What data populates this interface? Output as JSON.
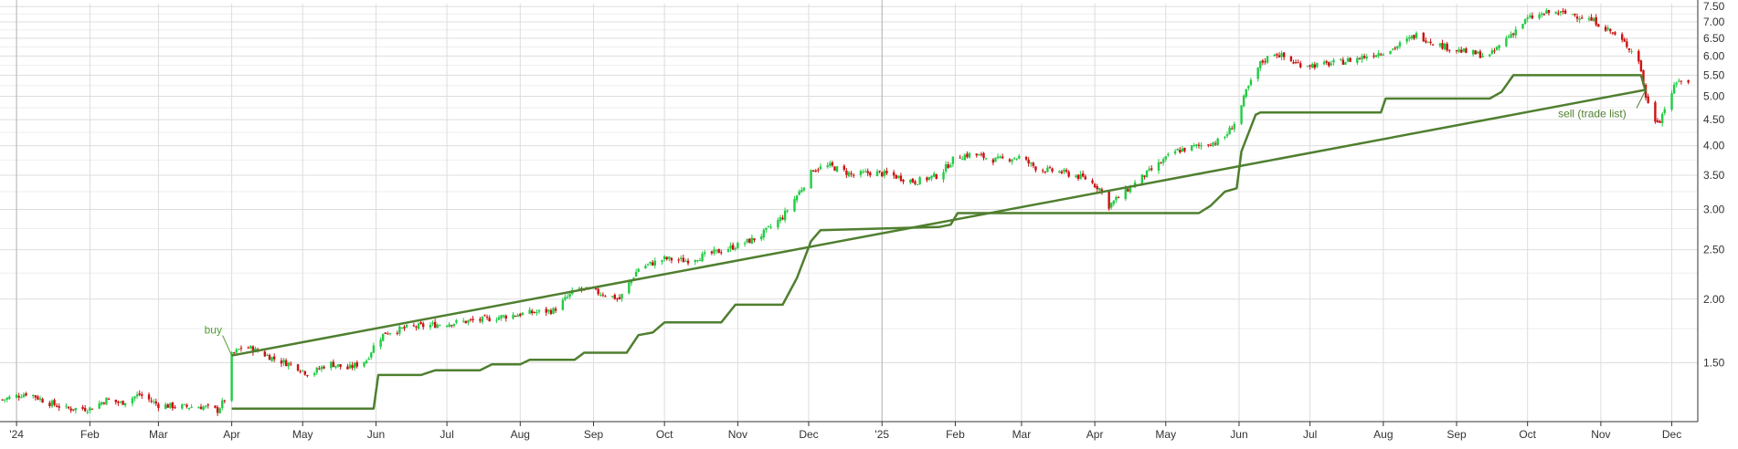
{
  "chart_data": {
    "type": "candlestick",
    "y_scale": "log",
    "ylim": [
      1.15,
      7.6
    ],
    "xlim": [
      "2023-12-25",
      "2025-12-12"
    ],
    "grid": true,
    "colors": {
      "up": "#22cc44",
      "down": "#cc1111",
      "line": "#4f7f2f",
      "grid": "#dddddd",
      "axis": "#333333"
    },
    "x_ticks": [
      {
        "date": "2024-01-01",
        "label": "'24"
      },
      {
        "date": "2024-02-01",
        "label": "Feb"
      },
      {
        "date": "2024-03-01",
        "label": "Mar"
      },
      {
        "date": "2024-04-01",
        "label": "Apr"
      },
      {
        "date": "2024-05-01",
        "label": "May"
      },
      {
        "date": "2024-06-01",
        "label": "Jun"
      },
      {
        "date": "2024-07-01",
        "label": "Jul"
      },
      {
        "date": "2024-08-01",
        "label": "Aug"
      },
      {
        "date": "2024-09-01",
        "label": "Sep"
      },
      {
        "date": "2024-10-01",
        "label": "Oct"
      },
      {
        "date": "2024-11-01",
        "label": "Nov"
      },
      {
        "date": "2024-12-01",
        "label": "Dec"
      },
      {
        "date": "2025-01-01",
        "label": "'25"
      },
      {
        "date": "2025-02-01",
        "label": "Feb"
      },
      {
        "date": "2025-03-01",
        "label": "Mar"
      },
      {
        "date": "2025-04-01",
        "label": "Apr"
      },
      {
        "date": "2025-05-01",
        "label": "May"
      },
      {
        "date": "2025-06-01",
        "label": "Jun"
      },
      {
        "date": "2025-07-01",
        "label": "Jul"
      },
      {
        "date": "2025-08-01",
        "label": "Aug"
      },
      {
        "date": "2025-09-01",
        "label": "Sep"
      },
      {
        "date": "2025-10-01",
        "label": "Oct"
      },
      {
        "date": "2025-11-01",
        "label": "Nov"
      },
      {
        "date": "2025-12-01",
        "label": "Dec"
      }
    ],
    "y_ticks": [
      {
        "value": 1.5,
        "label": "1.50"
      },
      {
        "value": 2.0,
        "label": "2.00"
      },
      {
        "value": 2.5,
        "label": "2.50"
      },
      {
        "value": 3.0,
        "label": "3.00"
      },
      {
        "value": 3.5,
        "label": "3.50"
      },
      {
        "value": 4.0,
        "label": "4.00"
      },
      {
        "value": 4.5,
        "label": "4.50"
      },
      {
        "value": 5.0,
        "label": "5.00"
      },
      {
        "value": 5.5,
        "label": "5.50"
      },
      {
        "value": 6.0,
        "label": "6.00"
      },
      {
        "value": 6.5,
        "label": "6.50"
      },
      {
        "value": 7.0,
        "label": "7.00"
      },
      {
        "value": 7.5,
        "label": "7.50"
      }
    ],
    "price_path": [
      [
        "2023-12-26",
        1.27
      ],
      [
        "2024-01-06",
        1.31
      ],
      [
        "2024-01-13",
        1.26
      ],
      [
        "2024-01-22",
        1.22
      ],
      [
        "2024-02-01",
        1.22
      ],
      [
        "2024-02-08",
        1.27
      ],
      [
        "2024-02-14",
        1.25
      ],
      [
        "2024-02-22",
        1.3
      ],
      [
        "2024-03-01",
        1.24
      ],
      [
        "2024-03-10",
        1.23
      ],
      [
        "2024-03-20",
        1.23
      ],
      [
        "2024-03-26",
        1.21
      ],
      [
        "2024-03-29",
        1.27
      ],
      [
        "2024-04-01",
        1.55
      ],
      [
        "2024-04-06",
        1.62
      ],
      [
        "2024-04-12",
        1.58
      ],
      [
        "2024-04-20",
        1.52
      ],
      [
        "2024-04-28",
        1.48
      ],
      [
        "2024-05-04",
        1.42
      ],
      [
        "2024-05-12",
        1.5
      ],
      [
        "2024-05-20",
        1.46
      ],
      [
        "2024-05-28",
        1.52
      ],
      [
        "2024-06-01",
        1.65
      ],
      [
        "2024-06-05",
        1.72
      ],
      [
        "2024-06-15",
        1.76
      ],
      [
        "2024-06-25",
        1.78
      ],
      [
        "2024-07-05",
        1.8
      ],
      [
        "2024-07-15",
        1.82
      ],
      [
        "2024-07-25",
        1.85
      ],
      [
        "2024-08-05",
        1.88
      ],
      [
        "2024-08-15",
        1.9
      ],
      [
        "2024-08-25",
        2.1
      ],
      [
        "2024-09-05",
        2.05
      ],
      [
        "2024-09-12",
        2.0
      ],
      [
        "2024-09-20",
        2.3
      ],
      [
        "2024-10-01",
        2.4
      ],
      [
        "2024-10-10",
        2.38
      ],
      [
        "2024-10-20",
        2.45
      ],
      [
        "2024-11-01",
        2.55
      ],
      [
        "2024-11-10",
        2.65
      ],
      [
        "2024-11-20",
        2.9
      ],
      [
        "2024-11-28",
        3.3
      ],
      [
        "2024-12-03",
        3.6
      ],
      [
        "2024-12-10",
        3.65
      ],
      [
        "2024-12-20",
        3.5
      ],
      [
        "2024-12-28",
        3.55
      ],
      [
        "2025-01-05",
        3.5
      ],
      [
        "2025-01-15",
        3.4
      ],
      [
        "2025-01-25",
        3.5
      ],
      [
        "2025-02-01",
        3.8
      ],
      [
        "2025-02-08",
        3.85
      ],
      [
        "2025-02-18",
        3.75
      ],
      [
        "2025-02-28",
        3.8
      ],
      [
        "2025-03-08",
        3.6
      ],
      [
        "2025-03-18",
        3.55
      ],
      [
        "2025-03-28",
        3.45
      ],
      [
        "2025-04-03",
        3.3
      ],
      [
        "2025-04-07",
        3.05
      ],
      [
        "2025-04-12",
        3.2
      ],
      [
        "2025-04-22",
        3.5
      ],
      [
        "2025-05-05",
        3.9
      ],
      [
        "2025-05-15",
        4.0
      ],
      [
        "2025-05-25",
        4.1
      ],
      [
        "2025-05-31",
        4.5
      ],
      [
        "2025-06-04",
        5.1
      ],
      [
        "2025-06-10",
        5.8
      ],
      [
        "2025-06-16",
        6.1
      ],
      [
        "2025-06-25",
        5.8
      ],
      [
        "2025-07-05",
        5.75
      ],
      [
        "2025-07-15",
        5.85
      ],
      [
        "2025-07-25",
        6.0
      ],
      [
        "2025-08-05",
        6.2
      ],
      [
        "2025-08-15",
        6.6
      ],
      [
        "2025-08-25",
        6.3
      ],
      [
        "2025-09-05",
        6.1
      ],
      [
        "2025-09-15",
        6.0
      ],
      [
        "2025-09-22",
        6.5
      ],
      [
        "2025-10-01",
        7.1
      ],
      [
        "2025-10-10",
        7.3
      ],
      [
        "2025-10-20",
        7.25
      ],
      [
        "2025-10-30",
        7.0
      ],
      [
        "2025-11-05",
        6.7
      ],
      [
        "2025-11-12",
        6.3
      ],
      [
        "2025-11-17",
        5.9
      ],
      [
        "2025-11-20",
        5.0
      ],
      [
        "2025-11-23",
        4.5
      ],
      [
        "2025-11-26",
        4.5
      ],
      [
        "2025-11-30",
        5.0
      ],
      [
        "2025-12-04",
        5.4
      ],
      [
        "2025-12-08",
        5.3
      ]
    ],
    "trailing_stop": [
      [
        "2024-04-01",
        1.22
      ],
      [
        "2024-05-31",
        1.22
      ],
      [
        "2024-06-02",
        1.42
      ],
      [
        "2024-06-20",
        1.42
      ],
      [
        "2024-06-26",
        1.45
      ],
      [
        "2024-07-15",
        1.45
      ],
      [
        "2024-07-20",
        1.49
      ],
      [
        "2024-08-01",
        1.49
      ],
      [
        "2024-08-05",
        1.52
      ],
      [
        "2024-08-24",
        1.52
      ],
      [
        "2024-08-28",
        1.57
      ],
      [
        "2024-09-15",
        1.57
      ],
      [
        "2024-09-20",
        1.7
      ],
      [
        "2024-09-26",
        1.72
      ],
      [
        "2024-10-01",
        1.8
      ],
      [
        "2024-10-25",
        1.8
      ],
      [
        "2024-10-31",
        1.95
      ],
      [
        "2024-11-20",
        1.95
      ],
      [
        "2024-11-26",
        2.2
      ],
      [
        "2024-12-02",
        2.6
      ],
      [
        "2024-12-06",
        2.73
      ],
      [
        "2025-01-10",
        2.76
      ],
      [
        "2025-01-25",
        2.77
      ],
      [
        "2025-01-30",
        2.8
      ],
      [
        "2025-02-02",
        2.95
      ],
      [
        "2025-04-10",
        2.95
      ],
      [
        "2025-05-15",
        2.95
      ],
      [
        "2025-05-20",
        3.05
      ],
      [
        "2025-05-26",
        3.25
      ],
      [
        "2025-05-31",
        3.3
      ],
      [
        "2025-06-02",
        3.9
      ],
      [
        "2025-06-08",
        4.6
      ],
      [
        "2025-06-10",
        4.65
      ],
      [
        "2025-07-31",
        4.65
      ],
      [
        "2025-08-02",
        4.95
      ],
      [
        "2025-09-15",
        4.95
      ],
      [
        "2025-09-20",
        5.1
      ],
      [
        "2025-09-25",
        5.5
      ],
      [
        "2025-11-18",
        5.5
      ],
      [
        "2025-11-20",
        5.1
      ]
    ],
    "trade_line": {
      "from": [
        "2024-04-01",
        1.55
      ],
      "to": [
        "2025-11-20",
        5.15
      ]
    },
    "annotations": [
      {
        "id": "buy",
        "text": "buy",
        "date": "2024-04-01",
        "value": 1.55,
        "color": "#4f9f2f"
      },
      {
        "id": "sell",
        "text": "sell (trade list)",
        "date": "2025-11-20",
        "value": 5.15,
        "color": "#4f7f2f"
      }
    ]
  }
}
